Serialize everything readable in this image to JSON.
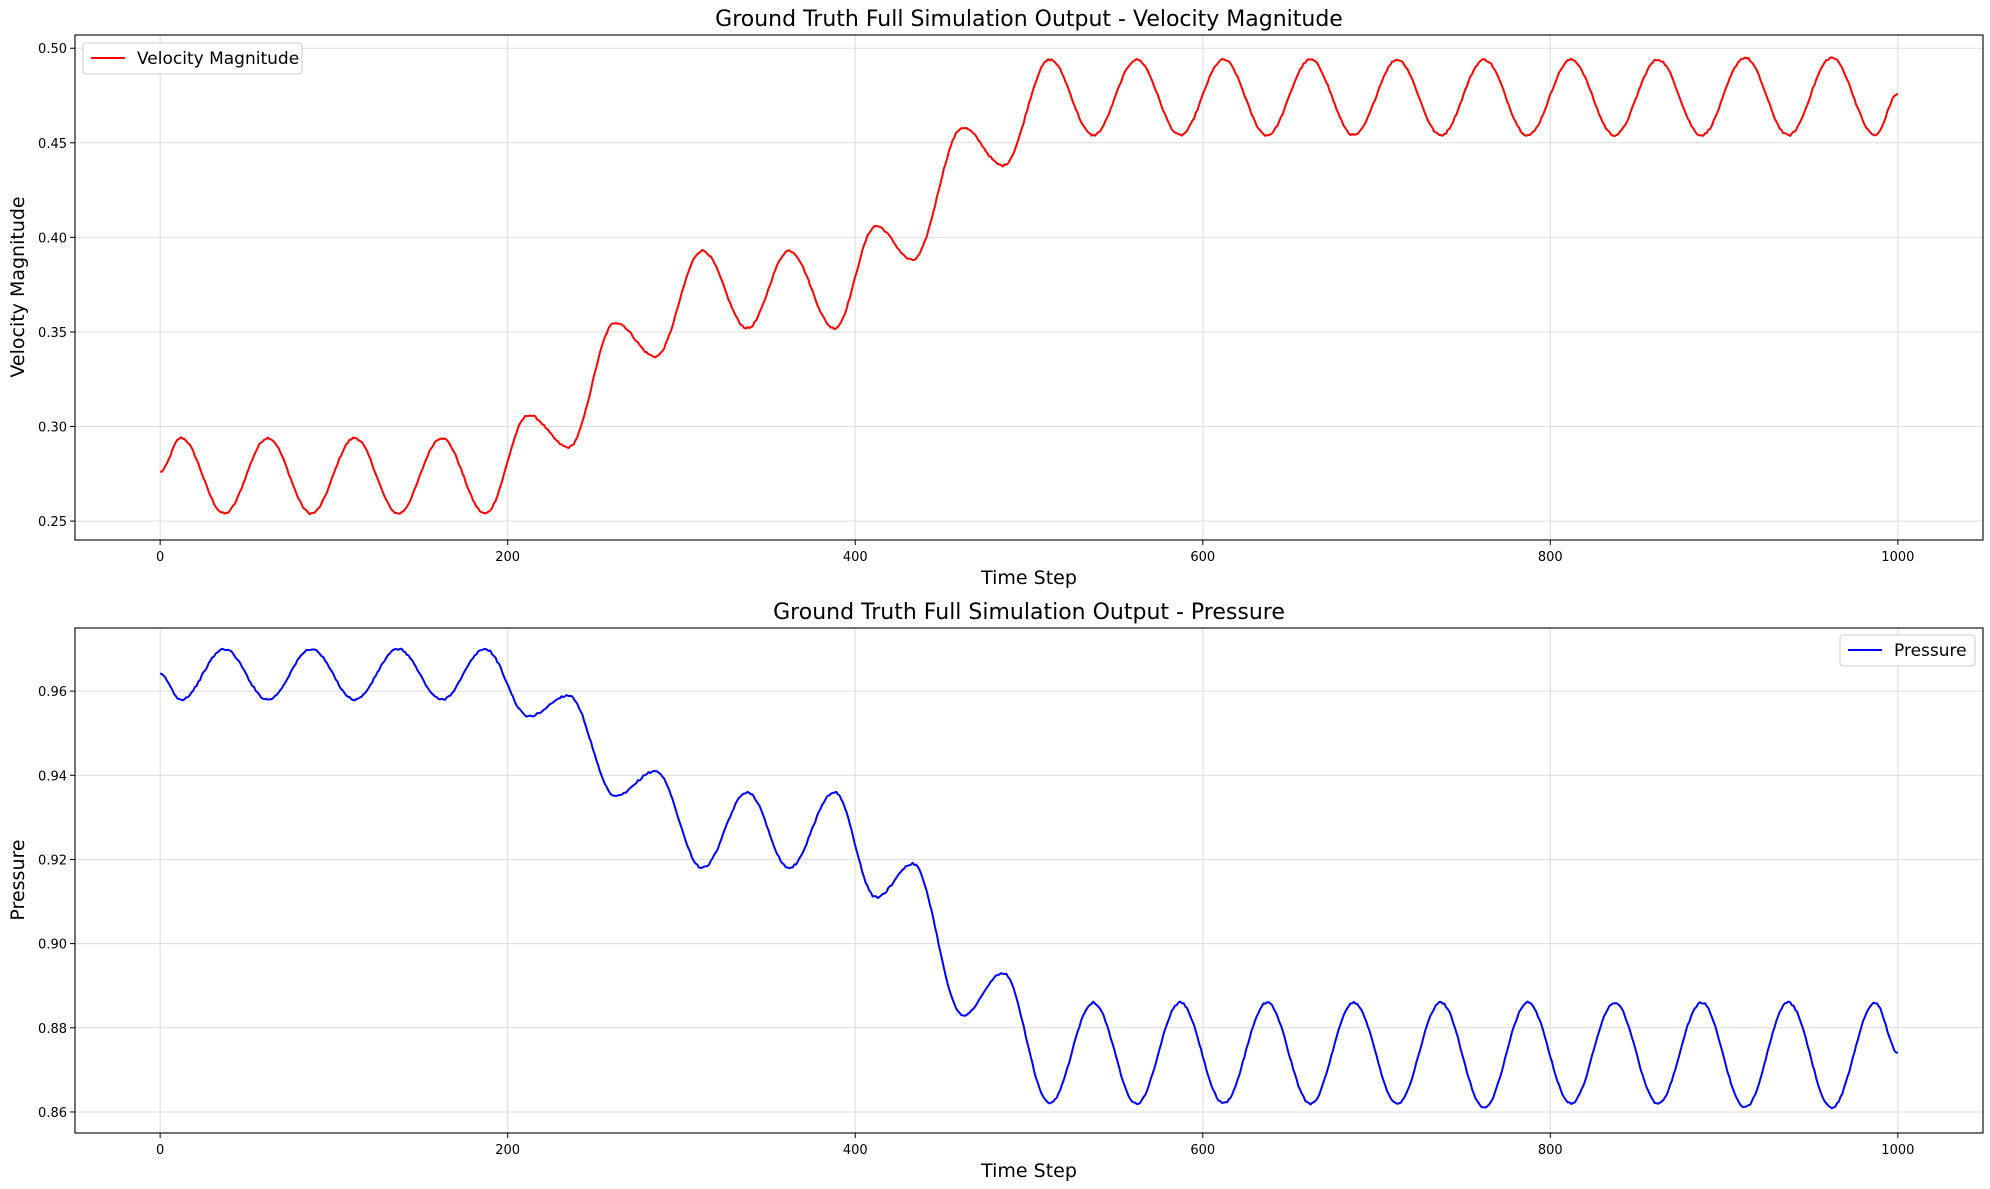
{
  "chart_data": [
    {
      "type": "line",
      "title": "Ground Truth Full Simulation Output - Velocity Magnitude",
      "xlabel": "Time Step",
      "ylabel": "Velocity Magnitude",
      "xlim": [
        -49,
        1049
      ],
      "ylim": [
        0.24,
        0.507
      ],
      "xticks": [
        0,
        200,
        400,
        600,
        800,
        1000
      ],
      "yticks": [
        0.25,
        0.3,
        0.35,
        0.4,
        0.45,
        0.5
      ],
      "ytick_labels": [
        "0.25",
        "0.30",
        "0.35",
        "0.40",
        "0.45",
        "0.50"
      ],
      "grid": true,
      "legend_position": "upper-left",
      "series": [
        {
          "name": "Velocity Magnitude",
          "color": "#ff0000",
          "x": [
            0,
            12,
            37,
            62,
            87,
            112,
            137,
            162,
            187,
            212,
            235,
            262,
            285,
            312,
            338,
            362,
            388,
            412,
            433,
            462,
            485,
            512,
            537,
            562,
            587,
            612,
            637,
            662,
            687,
            712,
            737,
            762,
            787,
            812,
            837,
            862,
            887,
            912,
            937,
            962,
            987,
            1000
          ],
          "values": [
            0.276,
            0.294,
            0.254,
            0.294,
            0.254,
            0.294,
            0.254,
            0.294,
            0.254,
            0.306,
            0.289,
            0.355,
            0.337,
            0.393,
            0.352,
            0.393,
            0.352,
            0.406,
            0.388,
            0.458,
            0.438,
            0.494,
            0.454,
            0.494,
            0.454,
            0.494,
            0.454,
            0.494,
            0.454,
            0.494,
            0.454,
            0.494,
            0.454,
            0.494,
            0.454,
            0.494,
            0.454,
            0.495,
            0.454,
            0.495,
            0.454,
            0.476
          ]
        }
      ]
    },
    {
      "type": "line",
      "title": "Ground Truth Full Simulation Output - Pressure",
      "xlabel": "Time Step",
      "ylabel": "Pressure",
      "xlim": [
        -49,
        1049
      ],
      "ylim": [
        0.855,
        0.975
      ],
      "xticks": [
        0,
        200,
        400,
        600,
        800,
        1000
      ],
      "yticks": [
        0.86,
        0.88,
        0.9,
        0.92,
        0.94,
        0.96
      ],
      "ytick_labels": [
        "0.86",
        "0.88",
        "0.90",
        "0.92",
        "0.94",
        "0.96"
      ],
      "grid": true,
      "legend_position": "upper-right",
      "series": [
        {
          "name": "Pressure",
          "color": "#0000ff",
          "x": [
            0,
            12,
            37,
            62,
            87,
            112,
            137,
            162,
            187,
            212,
            235,
            262,
            285,
            312,
            338,
            362,
            388,
            412,
            433,
            462,
            485,
            512,
            537,
            562,
            587,
            612,
            637,
            662,
            687,
            712,
            737,
            762,
            787,
            812,
            837,
            862,
            887,
            912,
            937,
            962,
            987,
            1000
          ],
          "values": [
            0.964,
            0.958,
            0.97,
            0.958,
            0.97,
            0.958,
            0.97,
            0.958,
            0.97,
            0.954,
            0.959,
            0.935,
            0.941,
            0.918,
            0.936,
            0.918,
            0.936,
            0.911,
            0.919,
            0.883,
            0.893,
            0.862,
            0.886,
            0.862,
            0.886,
            0.862,
            0.886,
            0.862,
            0.886,
            0.862,
            0.886,
            0.861,
            0.886,
            0.862,
            0.886,
            0.862,
            0.886,
            0.861,
            0.886,
            0.861,
            0.886,
            0.874
          ]
        }
      ]
    }
  ]
}
